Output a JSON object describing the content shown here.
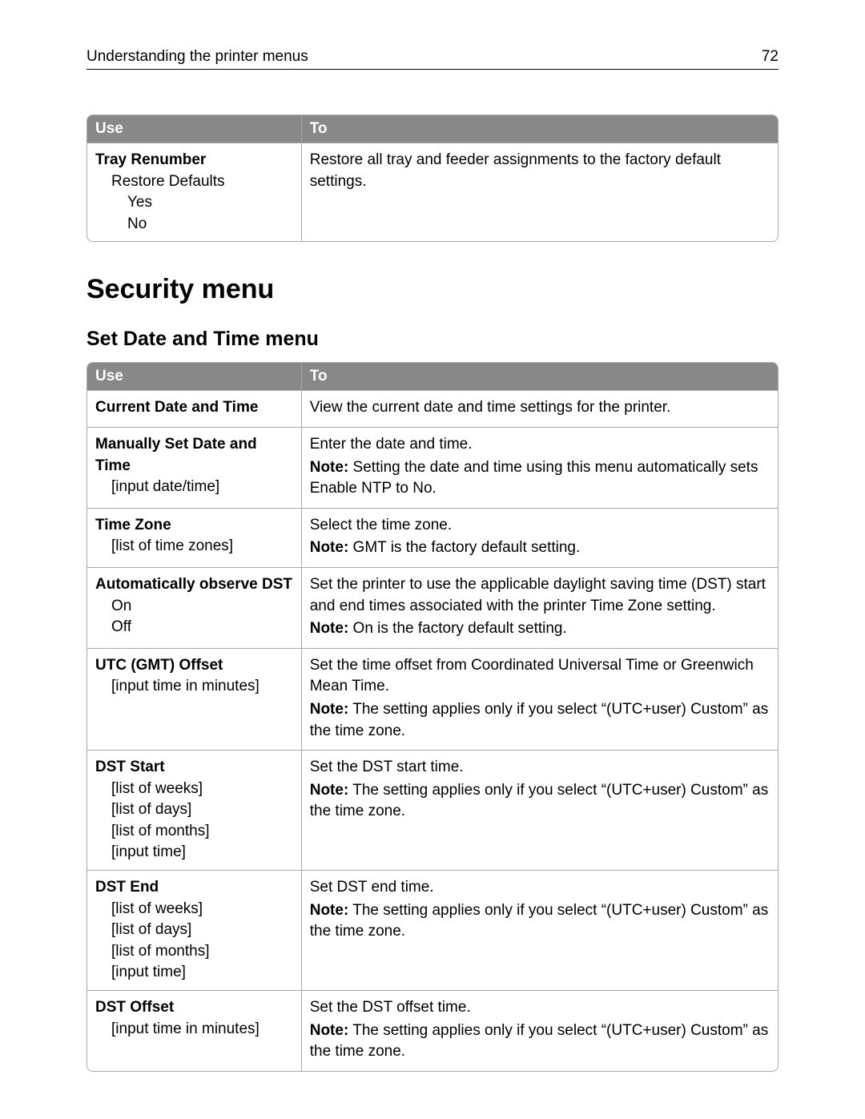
{
  "header": {
    "title": "Understanding the printer menus",
    "page": "72"
  },
  "table1": {
    "headers": {
      "use": "Use",
      "to": "To"
    },
    "row": {
      "title": "Tray Renumber",
      "sub1": "Restore Defaults",
      "sub2a": "Yes",
      "sub2b": "No",
      "desc": "Restore all tray and feeder assignments to the factory default settings."
    }
  },
  "h2": "Security menu",
  "h3": "Set Date and Time menu",
  "table2": {
    "headers": {
      "use": "Use",
      "to": "To"
    },
    "rows": {
      "r1": {
        "title": "Current Date and Time",
        "desc": "View the current date and time settings for the printer."
      },
      "r2": {
        "title": "Manually Set Date and Time",
        "sub1": "[input date/time]",
        "desc": "Enter the date and time.",
        "noteLabel": "Note:",
        "noteText": " Setting the date and time using this menu automatically sets Enable NTP to No."
      },
      "r3": {
        "title": "Time Zone",
        "sub1": "[list of time zones]",
        "desc": "Select the time zone.",
        "noteLabel": "Note:",
        "noteText": " GMT is the factory default setting."
      },
      "r4": {
        "title": "Automatically observe DST",
        "sub1a": "On",
        "sub1b": "Off",
        "desc": "Set the printer to use the applicable daylight saving time (DST) start and end times associated with the printer Time Zone setting.",
        "noteLabel": "Note:",
        "noteText": " On is the factory default setting."
      },
      "r5": {
        "title": "UTC (GMT) Offset",
        "sub1": "[input time in minutes]",
        "desc": "Set the time offset from Coordinated Universal Time or Greenwich Mean Time.",
        "noteLabel": "Note:",
        "noteText": " The setting applies only if you select “(UTC+user) Custom” as the time zone."
      },
      "r6": {
        "title": "DST Start",
        "sub1a": "[list of weeks]",
        "sub1b": "[list of days]",
        "sub1c": "[list of months]",
        "sub1d": "[input time]",
        "desc": "Set the DST start time.",
        "noteLabel": "Note:",
        "noteText": " The setting applies only if you select “(UTC+user) Custom” as the time zone."
      },
      "r7": {
        "title": "DST End",
        "sub1a": "[list of weeks]",
        "sub1b": "[list of days]",
        "sub1c": "[list of months]",
        "sub1d": "[input time]",
        "desc": "Set DST end time.",
        "noteLabel": "Note:",
        "noteText": " The setting applies only if you select “(UTC+user) Custom” as the time zone."
      },
      "r8": {
        "title": "DST Offset",
        "sub1": "[input time in minutes]",
        "desc": "Set the DST offset time.",
        "noteLabel": "Note:",
        "noteText": " The setting applies only if you select “(UTC+user) Custom” as the time zone."
      }
    }
  }
}
